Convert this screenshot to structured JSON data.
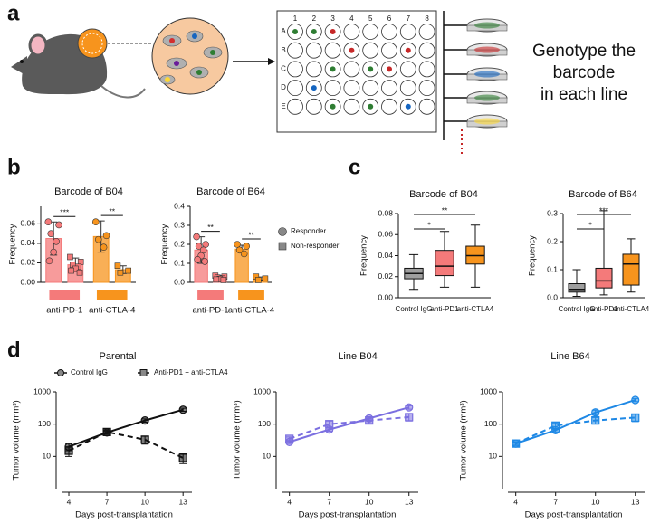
{
  "panel_labels": [
    "a",
    "b",
    "c",
    "d"
  ],
  "figure_a": {
    "plate_columns": [
      "1",
      "2",
      "3",
      "4",
      "5",
      "6",
      "7",
      "8"
    ],
    "plate_rows": [
      "A",
      "B",
      "C",
      "D",
      "E"
    ],
    "caption_lines": [
      "Genotype the",
      "barcode",
      "in each line"
    ]
  },
  "chart_data": [
    {
      "type": "bar",
      "title": "Barcode of B04",
      "ylabel": "Frequency",
      "categories": [
        "anti-PD-1",
        "anti-CTLA-4"
      ],
      "category_colors": [
        "#f47a7a",
        "#f7941d"
      ],
      "ylim": [
        0,
        0.078
      ],
      "yticks": [
        {
          "value": 0,
          "label": "0.00"
        },
        0.02,
        0.04,
        0.06
      ],
      "series": [
        {
          "name": "Responder",
          "marker": "circle",
          "values": [
            0.045,
            0.047
          ],
          "errors": [
            0.017,
            0.016
          ],
          "points": [
            [
              0.062,
              0.059,
              0.05,
              0.042,
              0.031,
              0.022
            ],
            [
              0.062,
              0.048,
              0.044,
              0.036
            ]
          ]
        },
        {
          "name": "Non-responder",
          "marker": "square",
          "values": [
            0.018,
            0.013
          ],
          "errors": [
            0.007,
            0.004
          ],
          "points": [
            [
              0.026,
              0.021,
              0.018,
              0.016,
              0.014,
              0.012,
              0.01
            ],
            [
              0.017,
              0.012,
              0.01
            ]
          ]
        }
      ],
      "significance": [
        {
          "label": "***",
          "category": 0
        },
        {
          "label": "**",
          "category": 1
        }
      ]
    },
    {
      "type": "bar",
      "title": "Barcode of B64",
      "ylabel": "Frequency",
      "categories": [
        "anti-PD-1",
        "anti-CTLA-4"
      ],
      "category_colors": [
        "#f47a7a",
        "#f7941d"
      ],
      "ylim": [
        0,
        0.4
      ],
      "yticks": [
        {
          "value": 0,
          "label": "0.0"
        },
        0.1,
        0.2,
        0.3,
        0.4
      ],
      "legend": "right",
      "series": [
        {
          "name": "Responder",
          "marker": "circle",
          "values": [
            0.17,
            0.175
          ],
          "errors": [
            0.07,
            0.02
          ],
          "points": [
            [
              0.24,
              0.2,
              0.19,
              0.17,
              0.14,
              0.12,
              0.11
            ],
            [
              0.2,
              0.19,
              0.17,
              0.15
            ]
          ]
        },
        {
          "name": "Non-responder",
          "marker": "square",
          "values": [
            0.025,
            0.02
          ],
          "errors": [
            0.01,
            0.008
          ],
          "points": [
            [
              0.035,
              0.03,
              0.025,
              0.02,
              0.018,
              0.015,
              0.012
            ],
            [
              0.03,
              0.02,
              0.012
            ]
          ]
        }
      ],
      "significance": [
        {
          "label": "**",
          "category": 0
        },
        {
          "label": "**",
          "category": 1
        }
      ]
    },
    {
      "type": "box",
      "title": "Barcode of B04",
      "ylabel": "Frequency",
      "categories": [
        "Control IgG",
        "anti-PD1",
        "anti-CTLA4"
      ],
      "colors": [
        "#9e9e9e",
        "#f47a7a",
        "#f7941d"
      ],
      "ylim": [
        0,
        0.08
      ],
      "yticks": [
        {
          "value": 0,
          "label": "0.00"
        },
        0.02,
        0.04,
        0.06,
        0.08
      ],
      "min": [
        0.008,
        0.01,
        0.01
      ],
      "q1": [
        0.018,
        0.021,
        0.032
      ],
      "median": [
        0.023,
        0.03,
        0.04
      ],
      "q3": [
        0.028,
        0.045,
        0.049
      ],
      "max": [
        0.041,
        0.063,
        0.069
      ],
      "significance": [
        {
          "label": "*",
          "pair": [
            0,
            1
          ]
        },
        {
          "label": "**",
          "pair": [
            0,
            2
          ]
        }
      ]
    },
    {
      "type": "box",
      "title": "Barcode of B64",
      "ylabel": "Frequency",
      "categories": [
        "Control IgG",
        "anti-PD1",
        "anti-CTLA4"
      ],
      "colors": [
        "#9e9e9e",
        "#f47a7a",
        "#f7941d"
      ],
      "ylim": [
        0,
        0.3
      ],
      "yticks": [
        {
          "value": 0,
          "label": "0.0"
        },
        0.1,
        0.2,
        0.3
      ],
      "min": [
        0.005,
        0.01,
        0.02
      ],
      "q1": [
        0.02,
        0.035,
        0.045
      ],
      "median": [
        0.03,
        0.06,
        0.12
      ],
      "q3": [
        0.05,
        0.105,
        0.155
      ],
      "max": [
        0.1,
        0.31,
        0.21
      ],
      "significance": [
        {
          "label": "*",
          "pair": [
            0,
            1
          ]
        },
        {
          "label": "***",
          "pair": [
            0,
            2
          ]
        }
      ]
    },
    {
      "type": "line",
      "title": "Parental",
      "xlabel": "Days post-transplantation",
      "ylabel": "Tumor volume (mm³)",
      "log_y": true,
      "legend": "top",
      "x": [
        4,
        7,
        10,
        13
      ],
      "xlim": [
        3,
        13.7
      ],
      "xticks": [
        4,
        7,
        10,
        13
      ],
      "ylim": [
        1,
        1000
      ],
      "yticks": [
        10,
        100,
        1000
      ],
      "series": [
        {
          "name": "Control IgG",
          "color": "#111111",
          "marker": "circle",
          "dashed": false,
          "values": [
            20,
            55,
            130,
            280
          ],
          "errors": [
            5,
            6,
            15,
            30
          ]
        },
        {
          "name": "Anti-PD1 + anti-CTLA4",
          "color": "#111111",
          "marker": "square",
          "dashed": true,
          "values": [
            15,
            57,
            33,
            9
          ],
          "errors": [
            5,
            8,
            9,
            3
          ]
        }
      ]
    },
    {
      "type": "line",
      "title": "Line B04",
      "xlabel": "Days post-transplantation",
      "ylabel": "Tumor volume (mm³)",
      "log_y": true,
      "x": [
        4,
        7,
        10,
        13
      ],
      "xlim": [
        3,
        13.7
      ],
      "xticks": [
        4,
        7,
        10,
        13
      ],
      "ylim": [
        1,
        1000
      ],
      "yticks": [
        10,
        100,
        1000
      ],
      "series": [
        {
          "name": "Control IgG",
          "color": "#7b6fe0",
          "marker": "circle",
          "dashed": false,
          "values": [
            28,
            68,
            150,
            330
          ],
          "errors": [
            3,
            8,
            20,
            40
          ]
        },
        {
          "name": "Anti-PD1 + anti-CTLA4",
          "color": "#7b6fe0",
          "marker": "square",
          "dashed": true,
          "values": [
            35,
            100,
            130,
            165
          ],
          "errors": [
            5,
            25,
            25,
            40
          ]
        }
      ]
    },
    {
      "type": "line",
      "title": "Line B64",
      "xlabel": "Days post-transplantation",
      "ylabel": "Tumor volume (mm³)",
      "log_y": true,
      "x": [
        4,
        7,
        10,
        13
      ],
      "xlim": [
        3,
        13.7
      ],
      "xticks": [
        4,
        7,
        10,
        13
      ],
      "ylim": [
        1,
        1000
      ],
      "yticks": [
        10,
        100,
        1000
      ],
      "series": [
        {
          "name": "Control IgG",
          "color": "#1e88e5",
          "marker": "circle",
          "dashed": false,
          "values": [
            25,
            65,
            230,
            560
          ],
          "errors": [
            3,
            8,
            40,
            60
          ]
        },
        {
          "name": "Anti-PD1 + anti-CTLA4",
          "color": "#1e88e5",
          "marker": "square",
          "dashed": true,
          "values": [
            25,
            90,
            130,
            160
          ],
          "errors": [
            3,
            20,
            30,
            40
          ]
        }
      ]
    }
  ]
}
